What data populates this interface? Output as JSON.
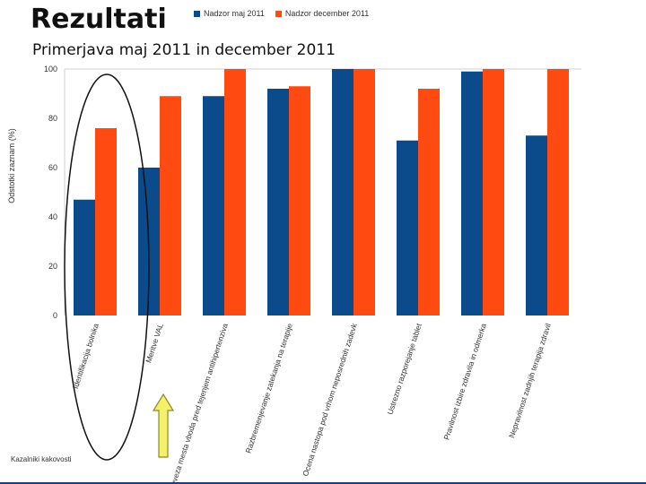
{
  "slide": {
    "title": "Rezultati",
    "subtitle": "Primerjava maj 2011 in december 2011",
    "footer": "Kazalniki kakovosti"
  },
  "colors": {
    "series1": "#0b4a8b",
    "series2": "#ff4a12",
    "ellipse": "#111111",
    "arrow_fill": "#f5f06a",
    "arrow_stroke": "#8a8a2a"
  },
  "chart_data": {
    "type": "bar",
    "title": "",
    "xlabel": "",
    "ylabel": "Odstotki zaznam (%)",
    "ylim": [
      0,
      100
    ],
    "yticks": [
      0,
      20,
      40,
      60,
      80,
      100
    ],
    "grid": false,
    "legend": "top",
    "categories": [
      "Identifikacija bolnika",
      "Meritve VAL",
      "Preveza mesta vboda pred tejenjem antihipertenziva",
      "Razbremenjevanje zatekanja na terapije",
      "Ocena nastopa pod vrhom neposrednih zadevk",
      "Ustrezno razporejanje tablet",
      "Pravilnost izbire zdravila in odmerka",
      "Nepravilnost zadnjih terapija zdravil"
    ],
    "series": [
      {
        "name": "Nadzor maj 2011",
        "values": [
          47,
          60,
          89,
          92,
          100,
          71,
          99,
          73
        ]
      },
      {
        "name": "Nadzor december 2011",
        "values": [
          76,
          89,
          100,
          93,
          100,
          92,
          100,
          100
        ]
      }
    ]
  }
}
